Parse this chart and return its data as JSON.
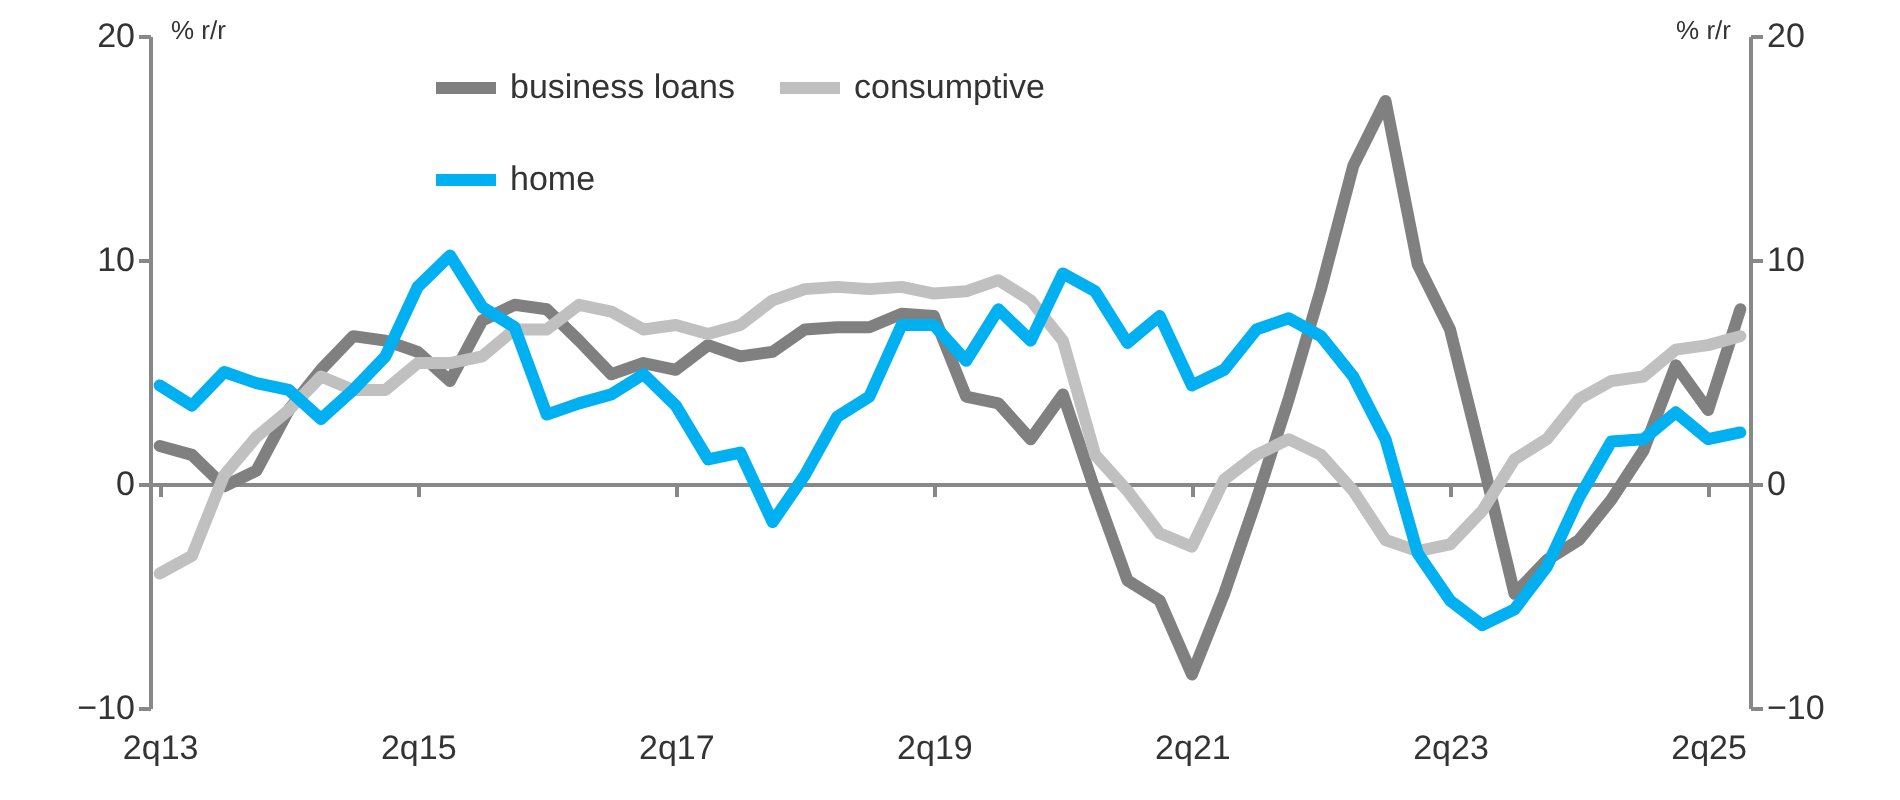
{
  "chart_data": {
    "type": "line",
    "categories": [
      "2q13",
      null,
      null,
      null,
      null,
      null,
      null,
      null,
      "2q15",
      null,
      null,
      null,
      null,
      null,
      null,
      null,
      "2q17",
      null,
      null,
      null,
      null,
      null,
      null,
      null,
      "2q19",
      null,
      null,
      null,
      null,
      null,
      null,
      null,
      "2q21",
      null,
      null,
      null,
      null,
      null,
      null,
      null,
      "2q23",
      null,
      null,
      null,
      null,
      null,
      null,
      null,
      "2q25",
      null
    ],
    "series": [
      {
        "name": "business loans",
        "color": "#808080",
        "values": [
          1.7,
          1.3,
          -0.1,
          0.6,
          3.3,
          5.1,
          6.6,
          6.4,
          5.9,
          4.6,
          7.3,
          8.0,
          7.8,
          6.4,
          4.9,
          5.4,
          5.1,
          6.2,
          5.7,
          5.9,
          6.9,
          7.0,
          7.0,
          7.6,
          7.5,
          3.9,
          3.6,
          2.0,
          4.0,
          -0.3,
          -4.3,
          -5.2,
          -8.5,
          -4.9,
          -0.7,
          3.8,
          8.7,
          14.2,
          17.1,
          9.8,
          6.9,
          1.1,
          -4.9,
          -3.4,
          -2.5,
          -0.7,
          1.5,
          5.3,
          3.3,
          7.8
        ]
      },
      {
        "name": "consumptive",
        "color": "#c0c0c0",
        "values": [
          -4.0,
          -3.2,
          0.4,
          2.1,
          3.3,
          4.8,
          4.2,
          4.2,
          5.4,
          5.4,
          5.7,
          6.9,
          6.9,
          8.0,
          7.7,
          6.9,
          7.1,
          6.7,
          7.1,
          8.2,
          8.7,
          8.8,
          8.7,
          8.8,
          8.5,
          8.6,
          9.1,
          8.2,
          6.4,
          1.3,
          -0.3,
          -2.2,
          -2.8,
          0.2,
          1.3,
          2.0,
          1.3,
          -0.3,
          -2.5,
          -3.0,
          -2.7,
          -1.2,
          1.1,
          2.0,
          3.8,
          4.6,
          4.8,
          6.0,
          6.2,
          6.6
        ]
      },
      {
        "name": "home",
        "color": "#00b0f0",
        "values": [
          4.4,
          3.5,
          5.0,
          4.5,
          4.2,
          2.9,
          4.2,
          5.7,
          8.8,
          10.2,
          7.9,
          7.0,
          3.1,
          3.6,
          4.0,
          4.9,
          3.5,
          1.1,
          1.4,
          -1.7,
          0.4,
          3.0,
          3.9,
          7.1,
          7.1,
          5.5,
          7.8,
          6.4,
          9.4,
          8.6,
          6.3,
          7.5,
          4.4,
          5.1,
          6.9,
          7.4,
          6.6,
          4.8,
          2.0,
          -3.1,
          -5.2,
          -6.3,
          -5.6,
          -3.7,
          -0.6,
          1.9,
          2.0,
          3.2,
          2.0,
          2.3
        ]
      }
    ],
    "ylim": [
      -10,
      20
    ],
    "yticks": [
      -10,
      0,
      10,
      20
    ],
    "ylabel": "% r/r",
    "y2lim": [
      -10,
      20
    ],
    "y2ticks": [
      -10,
      0,
      10,
      20
    ],
    "y2label": "% r/r",
    "legend": "top",
    "marker": "none",
    "line_style": "solid"
  }
}
